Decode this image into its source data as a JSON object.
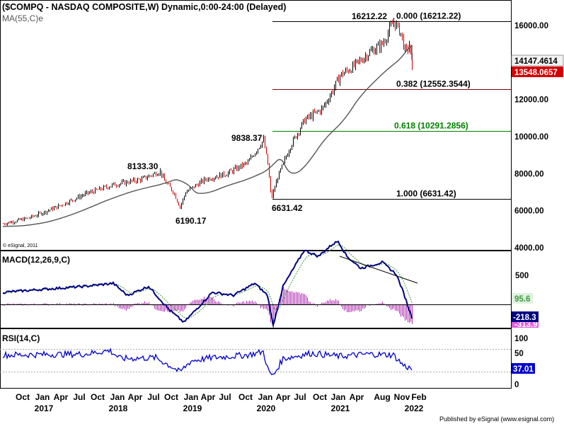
{
  "header": {
    "title": "($COMPQ - NASDAQ COMPOSITE,W) Dynamic,0:00-24:00 (Delayed)",
    "ma_label": "MA(55,C)e",
    "copyright": "© eSignal, 2011",
    "footer": "Published by eSignal (www.esignal.com)"
  },
  "colors": {
    "price_up": "#000000",
    "price_down": "#cc0000",
    "ma": "#555555",
    "fib_red": "#800000",
    "fib_green": "#008000",
    "macd_line": "#000080",
    "macd_signal": "#3a9a3a",
    "macd_hist": "#b030b0",
    "rsi_line": "#0000cc"
  },
  "chart_data": [
    {
      "type": "line",
      "panel": "price",
      "y_axis_ticks": [
        "16000.00",
        "14000.00",
        "12000.00",
        "10000.00",
        "8000.00",
        "6000.00",
        "4000.00"
      ],
      "y_ticks_values": [
        16000,
        14000,
        12000,
        10000,
        8000,
        6000,
        4000
      ],
      "ylim": [
        4000,
        16400
      ],
      "x_tick_labels": [
        "Oct",
        "Jan",
        "Apr",
        "Jul",
        "Oct",
        "Jan",
        "Apr",
        "Jul",
        "Oct",
        "Jan",
        "Apr",
        "Jul",
        "Oct",
        "Jan",
        "Apr",
        "Jul",
        "Oct",
        "Jan",
        "Apr",
        "Aug",
        "Nov",
        "Feb"
      ],
      "year_labels": [
        "2017",
        "2018",
        "2019",
        "2020",
        "2021",
        "2022"
      ],
      "last_price_labels": [
        "14147.4614",
        "13548.0657"
      ],
      "ma_value": 14147.4614,
      "last_close": 13548.0657,
      "annotations": [
        {
          "text": "8133.30",
          "value": 8133.3
        },
        {
          "text": "6190.17",
          "value": 6190.17
        },
        {
          "text": "9838.37",
          "value": 9838.37
        },
        {
          "text": "6631.42",
          "value": 6631.42
        },
        {
          "text": "16212.22",
          "value": 16212.22
        }
      ],
      "fib_levels": [
        {
          "label": "0.000 (16212.22)",
          "value": 16212.22
        },
        {
          "label": "0.382 (12552.3544)",
          "value": 12552.3544
        },
        {
          "label": "0.618 (10291.2856)",
          "value": 10291.2856
        },
        {
          "label": "1.000 (6631.42)",
          "value": 6631.42
        }
      ],
      "series": [
        {
          "name": "MA(55,C)e"
        }
      ]
    },
    {
      "type": "line",
      "panel": "macd",
      "title": "MACD(12,26,9,C)",
      "y_axis_ticks": [
        "500"
      ],
      "ylim": [
        -600,
        1400
      ],
      "value_labels": [
        "95.6",
        "-218.3",
        "-313.9"
      ],
      "macd_last": -218.3,
      "signal_last": 95.6,
      "hist_last": -313.9
    },
    {
      "type": "line",
      "panel": "rsi",
      "title": "RSI(14,C)",
      "y_axis_ticks": [
        "100",
        "50",
        "0"
      ],
      "ylim": [
        0,
        100
      ],
      "levels": [
        70,
        30
      ],
      "value_labels": [
        "37.01"
      ],
      "rsi_last": 37.01
    }
  ]
}
